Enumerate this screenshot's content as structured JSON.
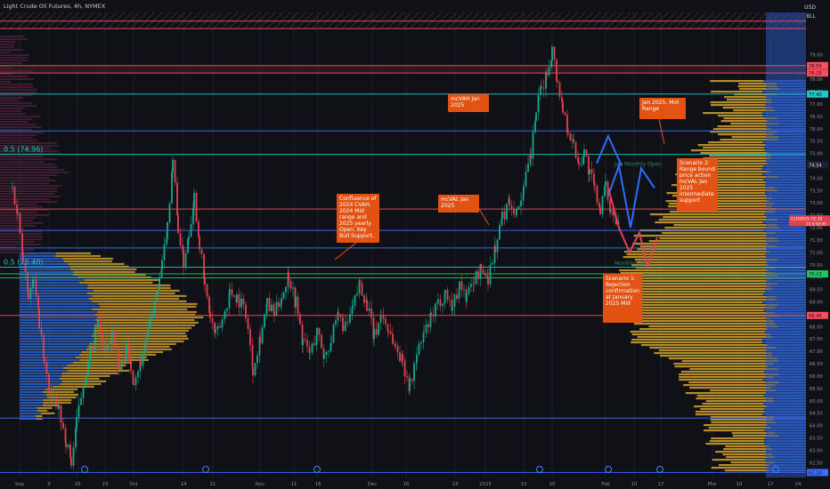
{
  "title": "Light Crude Oil Futures, 4h, NYMEX",
  "currency": "USD",
  "unit": "BLL",
  "chart_data": {
    "type": "candlestick",
    "symbol_label": "CLH2025",
    "symbol_price": "72.35",
    "symbol_sub": "23 4:10:45",
    "ylim": [
      61.9,
      80.7
    ],
    "x_ticks": [
      "Sep",
      "9",
      "16",
      "23",
      "Oct",
      "14",
      "21",
      "Nov",
      "11",
      "18",
      "Dec",
      "16",
      "23",
      "2025",
      "13",
      "20",
      "Feb",
      "10",
      "17",
      "Mar",
      "10",
      "17",
      "24"
    ],
    "y_ticks": [
      "79.00",
      "78.50",
      "78.00",
      "77.50",
      "77.00",
      "76.50",
      "76.00",
      "75.50",
      "75.00",
      "74.50",
      "74.00",
      "73.50",
      "73.00",
      "72.50",
      "72.00",
      "71.50",
      "71.00",
      "70.50",
      "70.00",
      "69.50",
      "69.00",
      "68.50",
      "68.00",
      "67.50",
      "67.00",
      "66.50",
      "66.00",
      "65.50",
      "65.00",
      "64.50",
      "64.00",
      "63.50",
      "63.00",
      "62.50"
    ],
    "price_path": [
      [
        0,
        73.6
      ],
      [
        6,
        72.5
      ],
      [
        12,
        70.9
      ],
      [
        18,
        69.3
      ],
      [
        24,
        69.8
      ],
      [
        30,
        68.2
      ],
      [
        36,
        66.4
      ],
      [
        44,
        65.1
      ],
      [
        52,
        64.6
      ],
      [
        60,
        63.4
      ],
      [
        66,
        62.5
      ],
      [
        72,
        64.1
      ],
      [
        80,
        65.8
      ],
      [
        88,
        66.9
      ],
      [
        96,
        68.1
      ],
      [
        104,
        66.8
      ],
      [
        112,
        67.9
      ],
      [
        120,
        66.2
      ],
      [
        128,
        67.1
      ],
      [
        136,
        65.9
      ],
      [
        144,
        66.6
      ],
      [
        152,
        67.8
      ],
      [
        160,
        68.9
      ],
      [
        168,
        70.4
      ],
      [
        174,
        72.1
      ],
      [
        180,
        74.8
      ],
      [
        186,
        72.0
      ],
      [
        192,
        70.6
      ],
      [
        198,
        71.8
      ],
      [
        204,
        73.3
      ],
      [
        210,
        71.4
      ],
      [
        216,
        69.6
      ],
      [
        222,
        68.4
      ],
      [
        228,
        67.6
      ],
      [
        236,
        68.3
      ],
      [
        244,
        69.4
      ],
      [
        252,
        69.2
      ],
      [
        262,
        68.6
      ],
      [
        270,
        66.3
      ],
      [
        278,
        67.6
      ],
      [
        286,
        68.9
      ],
      [
        294,
        68.5
      ],
      [
        302,
        69.2
      ],
      [
        310,
        70.1
      ],
      [
        318,
        69.0
      ],
      [
        326,
        67.4
      ],
      [
        334,
        66.9
      ],
      [
        342,
        67.8
      ],
      [
        350,
        66.8
      ],
      [
        358,
        67.5
      ],
      [
        366,
        68.4
      ],
      [
        374,
        67.9
      ],
      [
        382,
        68.7
      ],
      [
        390,
        69.8
      ],
      [
        398,
        68.9
      ],
      [
        406,
        67.6
      ],
      [
        414,
        68.5
      ],
      [
        422,
        67.9
      ],
      [
        430,
        67.2
      ],
      [
        438,
        66.6
      ],
      [
        446,
        65.6
      ],
      [
        454,
        66.8
      ],
      [
        462,
        67.7
      ],
      [
        470,
        68.3
      ],
      [
        478,
        68.9
      ],
      [
        486,
        69.4
      ],
      [
        494,
        68.8
      ],
      [
        502,
        69.7
      ],
      [
        510,
        69.2
      ],
      [
        518,
        69.9
      ],
      [
        526,
        70.3
      ],
      [
        534,
        70.0
      ],
      [
        542,
        71.2
      ],
      [
        550,
        72.4
      ],
      [
        558,
        73.1
      ],
      [
        566,
        72.6
      ],
      [
        574,
        73.6
      ],
      [
        582,
        74.9
      ],
      [
        588,
        76.7
      ],
      [
        594,
        77.6
      ],
      [
        600,
        78.2
      ],
      [
        606,
        79.2
      ],
      [
        612,
        77.9
      ],
      [
        618,
        76.8
      ],
      [
        624,
        76.0
      ],
      [
        630,
        75.3
      ],
      [
        636,
        74.6
      ],
      [
        642,
        75.1
      ],
      [
        648,
        74.2
      ],
      [
        654,
        73.5
      ],
      [
        660,
        72.8
      ],
      [
        666,
        73.6
      ],
      [
        672,
        72.7
      ],
      [
        678,
        72.4
      ],
      [
        683,
        72.7
      ]
    ],
    "levels": [
      {
        "price": 80.35,
        "color": "#ff4d5e",
        "label": ""
      },
      {
        "price": 80.05,
        "color": "#ff4d5e",
        "label": ""
      },
      {
        "price": 78.55,
        "color": "#ff4d5e",
        "label": "78.55"
      },
      {
        "price": 78.25,
        "color": "#ff4d5e",
        "label": "78.25"
      },
      {
        "price": 77.4,
        "color": "#1fc7c7",
        "label": "77.40"
      },
      {
        "price": 75.91,
        "color": "#3d6cff",
        "label": ""
      },
      {
        "price": 74.96,
        "color": "#1fc7c7",
        "label": ""
      },
      {
        "price": 72.75,
        "color": "#ff4d5e",
        "label": ""
      },
      {
        "price": 71.89,
        "color": "#3d6cff",
        "label": ""
      },
      {
        "price": 71.18,
        "color": "#3d6cff",
        "label": ""
      },
      {
        "price": 70.4,
        "color": "#1fc7c7",
        "label": ""
      },
      {
        "price": 70.13,
        "color": "#22c46e",
        "label": "70.13"
      },
      {
        "price": 69.97,
        "color": "#22c46e",
        "label": ""
      },
      {
        "price": 68.45,
        "color": "#ff4d5e",
        "label": "68.45"
      },
      {
        "price": 64.3,
        "color": "#3d6cff",
        "label": ""
      },
      {
        "price": 62.1,
        "color": "#3d6cff",
        "label": "62.10"
      }
    ],
    "fib_labels": [
      {
        "text": "0.5 (74.96)",
        "price": 74.96
      },
      {
        "text": "0.5 (70.40)",
        "price": 70.4
      }
    ],
    "axis_badges": [
      {
        "price": 74.54,
        "text": "74.54",
        "bg": "#1c2030",
        "color": "#e6e6e6"
      }
    ],
    "level_texts": [
      {
        "text": "Jan Monthly Open",
        "price": 74.5
      },
      {
        "text": "Monthly Open",
        "price": 70.5
      }
    ],
    "annotations": [
      {
        "text": "mcVAH Jan 2025",
        "price": 77.3
      },
      {
        "text": "mcVAL Jan 2025",
        "price": 73.0
      },
      {
        "text": "Confluence of 2024 CVAH, 2024 Mid range and 2025 yearly Open. Key Bull Support.",
        "price": 73.4
      },
      {
        "text": "Jan 2025, Mid Range",
        "price": 77.2
      },
      {
        "text": "Scenario 2: Range bound price action mcVAL Jan 2025 intermediate support",
        "price": 74.6
      },
      {
        "text": "Scenario 1: Rejection confirmation at January 2025 Mid",
        "price": 70.1
      }
    ],
    "projections": {
      "blue": [
        [
          74.6,
          75.7,
          74.5
        ],
        [
          73.3,
          74.5,
          72.0,
          74.4,
          73.6
        ]
      ],
      "red": [
        [
          73.6,
          72.0,
          71.0,
          71.8,
          70.4,
          71.6
        ]
      ]
    }
  }
}
